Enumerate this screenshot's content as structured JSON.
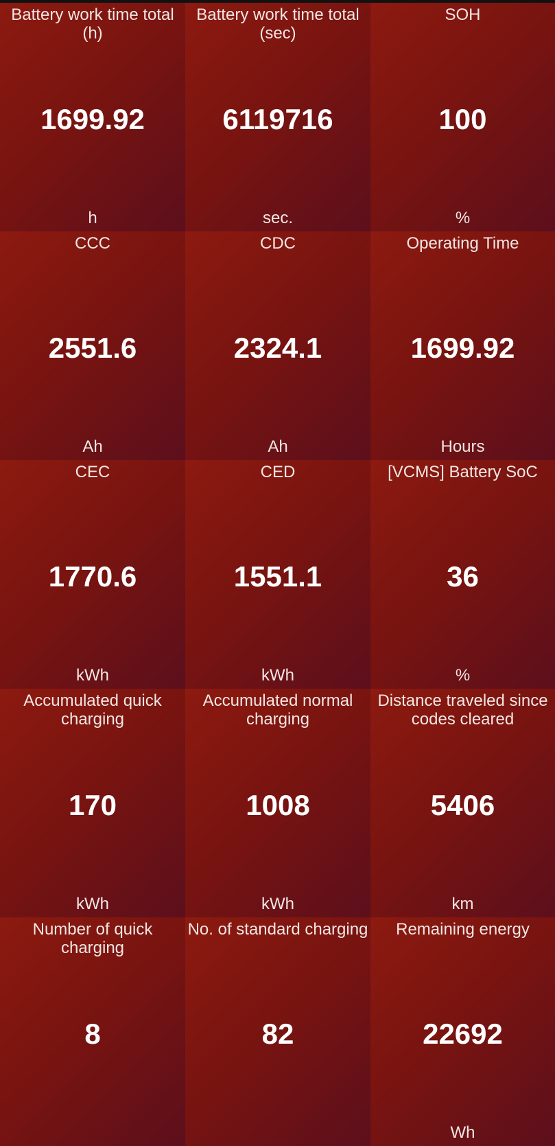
{
  "tiles": [
    {
      "label": "Battery work time total (h)",
      "value": "1699.92",
      "unit": "h"
    },
    {
      "label": "Battery work time total (sec)",
      "value": "6119716",
      "unit": "sec."
    },
    {
      "label": "SOH",
      "value": "100",
      "unit": "%"
    },
    {
      "label": "CCC",
      "value": "2551.6",
      "unit": "Ah"
    },
    {
      "label": "CDC",
      "value": "2324.1",
      "unit": "Ah"
    },
    {
      "label": "Operating Time",
      "value": "1699.92",
      "unit": "Hours"
    },
    {
      "label": "CEC",
      "value": "1770.6",
      "unit": "kWh"
    },
    {
      "label": "CED",
      "value": "1551.1",
      "unit": "kWh"
    },
    {
      "label": "[VCMS] Battery SoC",
      "value": "36",
      "unit": "%"
    },
    {
      "label": "Accumulated quick charging",
      "value": "170",
      "unit": "kWh"
    },
    {
      "label": "Accumulated normal charging",
      "value": "1008",
      "unit": "kWh"
    },
    {
      "label": "Distance traveled since codes cleared",
      "value": "5406",
      "unit": "km"
    },
    {
      "label": "Number of quick charging",
      "value": "8",
      "unit": ""
    },
    {
      "label": "No. of standard charging",
      "value": "82",
      "unit": ""
    },
    {
      "label": "Remaining energy",
      "value": "22692",
      "unit": "Wh"
    }
  ],
  "colors": {
    "tile_start": "#8c1a10",
    "tile_end": "#5c0f1c",
    "text": "#ffffff"
  }
}
